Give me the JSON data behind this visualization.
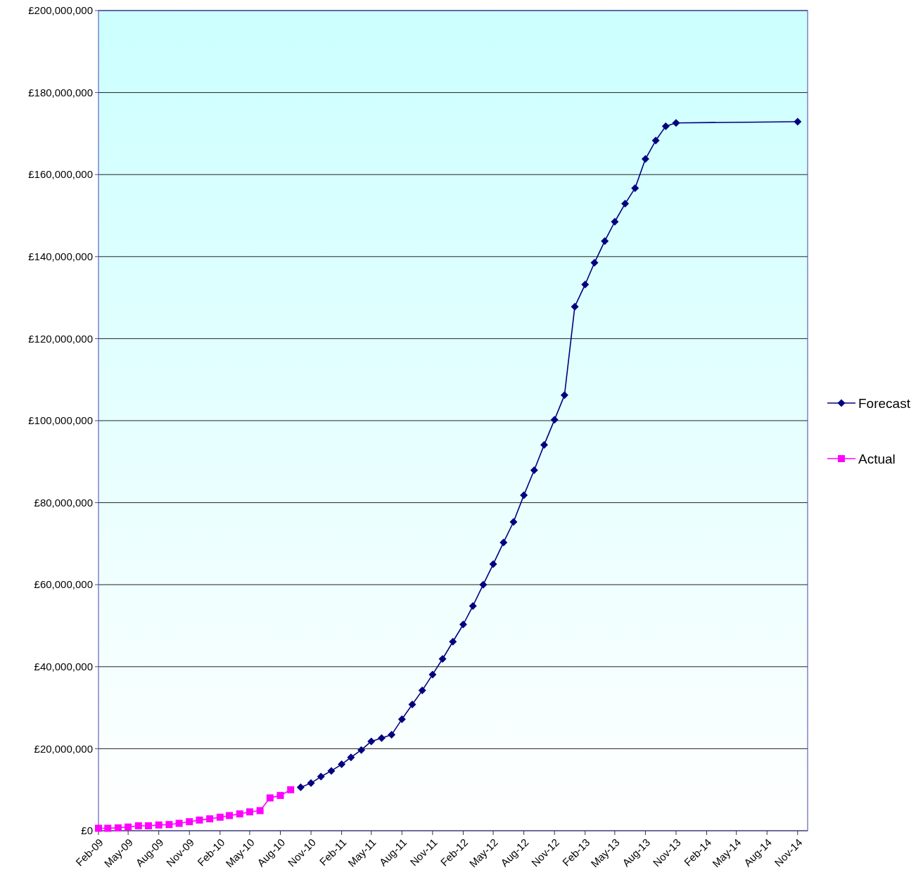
{
  "chart_data": {
    "type": "line",
    "x": [
      "2009-02",
      "2009-03",
      "2009-04",
      "2009-05",
      "2009-06",
      "2009-07",
      "2009-08",
      "2009-09",
      "2009-10",
      "2009-11",
      "2009-12",
      "2010-01",
      "2010-02",
      "2010-03",
      "2010-04",
      "2010-05",
      "2010-06",
      "2010-07",
      "2010-08",
      "2010-09"
    ],
    "series": [
      {
        "name": "Forecast",
        "color": "#000080",
        "marker": "diamond",
        "x": [
          "2010-10",
          "2010-11",
          "2010-12",
          "2011-01",
          "2011-02",
          "2011-03",
          "2011-04",
          "2011-05",
          "2011-06",
          "2011-07",
          "2011-08",
          "2011-09",
          "2011-10",
          "2011-11",
          "2011-12",
          "2012-01",
          "2012-02",
          "2012-03",
          "2012-04",
          "2012-05",
          "2012-06",
          "2012-07",
          "2012-08",
          "2012-09",
          "2012-10",
          "2012-11",
          "2012-12",
          "2013-01",
          "2013-02",
          "2013-03",
          "2013-04",
          "2013-05",
          "2013-06",
          "2013-07",
          "2013-08",
          "2013-09",
          "2013-10",
          "2013-11",
          "2014-11"
        ],
        "values": [
          10600000,
          11600000,
          13200000,
          14600000,
          16200000,
          17900000,
          19700000,
          21800000,
          22600000,
          23400000,
          27200000,
          30800000,
          34200000,
          38100000,
          41900000,
          46100000,
          50300000,
          54800000,
          60000000,
          65000000,
          70300000,
          75300000,
          81800000,
          87900000,
          94100000,
          100200000,
          106200000,
          127800000,
          133200000,
          138500000,
          143800000,
          148500000,
          152900000,
          156700000,
          163800000,
          168300000,
          171800000,
          172600000,
          172900000
        ]
      },
      {
        "name": "Actual",
        "color": "#ff00ff",
        "marker": "square",
        "values": [
          600000,
          600000,
          700000,
          900000,
          1200000,
          1200000,
          1400000,
          1500000,
          1800000,
          2200000,
          2600000,
          2900000,
          3300000,
          3700000,
          4100000,
          4600000,
          4900000,
          8000000,
          8600000,
          10000000
        ]
      }
    ],
    "xlim": [
      "2009-02",
      "2014-12"
    ],
    "xticks": [
      {
        "value": "2009-02",
        "label": "Feb-09"
      },
      {
        "value": "2009-05",
        "label": "May-09"
      },
      {
        "value": "2009-08",
        "label": "Aug-09"
      },
      {
        "value": "2009-11",
        "label": "Nov-09"
      },
      {
        "value": "2010-02",
        "label": "Feb-10"
      },
      {
        "value": "2010-05",
        "label": "May-10"
      },
      {
        "value": "2010-08",
        "label": "Aug-10"
      },
      {
        "value": "2010-11",
        "label": "Nov-10"
      },
      {
        "value": "2011-02",
        "label": "Feb-11"
      },
      {
        "value": "2011-05",
        "label": "May-11"
      },
      {
        "value": "2011-08",
        "label": "Aug-11"
      },
      {
        "value": "2011-11",
        "label": "Nov-11"
      },
      {
        "value": "2012-02",
        "label": "Feb-12"
      },
      {
        "value": "2012-05",
        "label": "May-12"
      },
      {
        "value": "2012-08",
        "label": "Aug-12"
      },
      {
        "value": "2012-11",
        "label": "Nov-12"
      },
      {
        "value": "2013-02",
        "label": "Feb-13"
      },
      {
        "value": "2013-05",
        "label": "May-13"
      },
      {
        "value": "2013-08",
        "label": "Aug-13"
      },
      {
        "value": "2013-11",
        "label": "Nov-13"
      },
      {
        "value": "2014-02",
        "label": "Feb-14"
      },
      {
        "value": "2014-05",
        "label": "May-14"
      },
      {
        "value": "2014-08",
        "label": "Aug-14"
      },
      {
        "value": "2014-11",
        "label": "Nov-14"
      }
    ],
    "ylim": [
      0,
      200000000
    ],
    "yticks": [
      {
        "value": 0,
        "label": "£0"
      },
      {
        "value": 20000000,
        "label": "£20,000,000"
      },
      {
        "value": 40000000,
        "label": "£40,000,000"
      },
      {
        "value": 60000000,
        "label": "£60,000,000"
      },
      {
        "value": 80000000,
        "label": "£80,000,000"
      },
      {
        "value": 100000000,
        "label": "£100,000,000"
      },
      {
        "value": 120000000,
        "label": "£120,000,000"
      },
      {
        "value": 140000000,
        "label": "£140,000,000"
      },
      {
        "value": 160000000,
        "label": "£160,000,000"
      },
      {
        "value": 180000000,
        "label": "£180,000,000"
      },
      {
        "value": 200000000,
        "label": "£200,000,000"
      }
    ],
    "grid": "y",
    "legend": "right",
    "line_style": "solid"
  }
}
